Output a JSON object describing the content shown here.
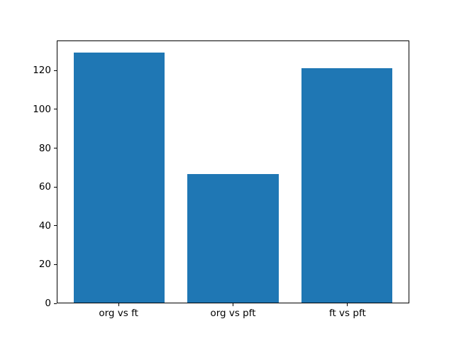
{
  "figure": {
    "background": "#ffffff",
    "spine_color": "#000000",
    "tick_color": "#000000",
    "tick_label_color": "#000000"
  },
  "chart_data": {
    "type": "bar",
    "categories": [
      "org vs ft",
      "org vs pft",
      "ft vs pft"
    ],
    "values": [
      129.5,
      66.7,
      121.5
    ],
    "title": "",
    "xlabel": "",
    "ylabel": "",
    "ylim": [
      0,
      135.5
    ],
    "yticks": [
      0,
      20,
      40,
      60,
      80,
      100,
      120
    ],
    "xlim": [
      -0.54,
      2.54
    ],
    "x_positions": [
      0,
      1,
      2
    ],
    "bar_width": 0.8,
    "bar_color": "#1f77b4",
    "grid": false,
    "legend_position": "none"
  }
}
